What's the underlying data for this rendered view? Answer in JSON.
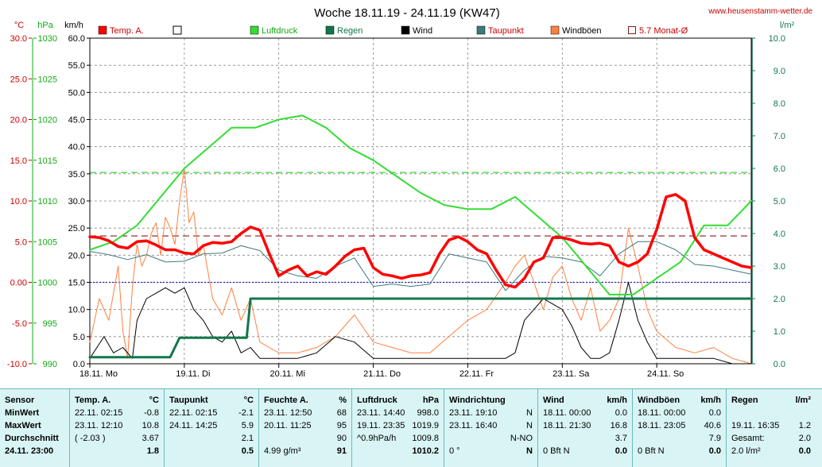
{
  "title": "Woche 18.11.19 - 24.11.19 (KW47)",
  "website": "www.heusenstamm-wetter.de",
  "colors": {
    "temp": "#ff0000",
    "pressure": "#33dd33",
    "rain": "#11774a",
    "wind": "#000000",
    "dewpoint": "#3d7a7a",
    "gust": "#ff8040",
    "monthavg": "#8b1a1a",
    "grid": "#888888",
    "frame": "#000000",
    "stats_bg": "#d9f4f4"
  },
  "axes_units": {
    "temp": "°C",
    "pressure": "hPa",
    "wind": "km/h",
    "rain": "l/m²"
  },
  "legend": [
    {
      "label": "Temp. A.",
      "color": "#ff0000",
      "style": "filled"
    },
    {
      "label": "",
      "color": "#ffffff",
      "style": "empty"
    },
    {
      "label": "Luftdruck",
      "color": "#33dd33",
      "style": "filled"
    },
    {
      "label": "Regen",
      "color": "#11774a",
      "style": "filled"
    },
    {
      "label": "Wind",
      "color": "#000000",
      "style": "filled"
    },
    {
      "label": "Taupunkt",
      "color": "#3d7a7a",
      "style": "filled"
    },
    {
      "label": "Windböen",
      "color": "#ff8040",
      "style": "filled"
    },
    {
      "label": "5.7 Monat-Ø",
      "color": "#8b1a1a",
      "style": "outline"
    }
  ],
  "chart_data": {
    "type": "line",
    "x_unit": "days",
    "x_range": [
      0,
      7
    ],
    "x_tick_labels": [
      "18.11. Mo",
      "19.11. Di",
      "20.11. Mi",
      "21.11. Do",
      "22.11. Fr",
      "23.11. Sa",
      "24.11. So"
    ],
    "axes": {
      "temp": {
        "range": [
          -10,
          30
        ],
        "ticks": [
          "30.0",
          "25.0",
          "20.0",
          "15.0",
          "10.0",
          "5.0",
          "0.00",
          "-5.0",
          "-10.0"
        ]
      },
      "pressure": {
        "range": [
          990,
          1030
        ],
        "ticks": [
          "1030",
          "1025",
          "1020",
          "1015",
          "1010",
          "1005",
          "1000",
          "995",
          "990"
        ]
      },
      "wind": {
        "range": [
          0,
          60
        ],
        "ticks": [
          "60.0",
          "55.0",
          "50.0",
          "45.0",
          "40.0",
          "35.0",
          "30.0",
          "25.0",
          "20.0",
          "15.0",
          "10.0",
          "5.0",
          "0.0"
        ]
      },
      "rain": {
        "range": [
          0,
          10
        ],
        "ticks": [
          "10.0",
          "9.0",
          "8.0",
          "7.0",
          "6.0",
          "5.0",
          "4.0",
          "3.0",
          "2.0",
          "1.0",
          "0.0"
        ]
      }
    },
    "reference_lines": [
      {
        "name": "Monat-Ø",
        "axis": "temp",
        "value": 5.7
      },
      {
        "axis": "pressure",
        "value": 1013.5
      },
      {
        "axis": "temp",
        "value": 0
      }
    ],
    "series": [
      {
        "name": "Temp. A.",
        "axis": "temp",
        "x": [
          0,
          0.1,
          0.2,
          0.3,
          0.4,
          0.5,
          0.6,
          0.7,
          0.8,
          0.9,
          1.0,
          1.1,
          1.2,
          1.3,
          1.4,
          1.5,
          1.6,
          1.7,
          1.8,
          1.9,
          2.0,
          2.1,
          2.2,
          2.3,
          2.4,
          2.5,
          2.6,
          2.7,
          2.8,
          2.9,
          3.0,
          3.1,
          3.2,
          3.3,
          3.4,
          3.5,
          3.6,
          3.7,
          3.8,
          3.9,
          4.0,
          4.1,
          4.2,
          4.3,
          4.4,
          4.5,
          4.6,
          4.7,
          4.8,
          4.9,
          5.0,
          5.1,
          5.2,
          5.3,
          5.4,
          5.5,
          5.6,
          5.7,
          5.8,
          5.9,
          6.0,
          6.1,
          6.2,
          6.3,
          6.4,
          6.5,
          6.6,
          6.7,
          6.8,
          6.9,
          7.0
        ],
        "y": [
          5.6,
          5.5,
          5.1,
          4.4,
          4.2,
          5.0,
          5.1,
          4.6,
          4.0,
          4.0,
          3.6,
          3.5,
          4.5,
          4.9,
          4.8,
          5.0,
          6.0,
          6.8,
          6.4,
          3.5,
          0.8,
          1.5,
          2.0,
          0.8,
          1.3,
          1.0,
          2.0,
          3.2,
          4.0,
          4.2,
          1.8,
          1.0,
          0.8,
          0.5,
          0.8,
          0.9,
          1.2,
          3.5,
          5.2,
          5.6,
          5.0,
          4.0,
          3.5,
          1.5,
          -0.3,
          -0.6,
          0.5,
          2.5,
          3.0,
          5.5,
          5.5,
          5.2,
          4.8,
          4.7,
          4.8,
          4.5,
          2.5,
          2.0,
          2.5,
          3.5,
          6.5,
          10.5,
          10.8,
          10.0,
          5.5,
          4.0,
          3.5,
          3.0,
          2.5,
          2.0,
          1.8
        ]
      },
      {
        "name": "Taupunkt",
        "axis": "temp",
        "x": [
          0,
          0.2,
          0.4,
          0.6,
          0.8,
          1.0,
          1.2,
          1.4,
          1.6,
          1.8,
          2.0,
          2.2,
          2.4,
          2.6,
          2.8,
          3.0,
          3.2,
          3.4,
          3.6,
          3.8,
          4.0,
          4.2,
          4.4,
          4.6,
          4.8,
          5.0,
          5.2,
          5.4,
          5.6,
          5.8,
          6.0,
          6.2,
          6.4,
          6.6,
          6.8,
          7.0
        ],
        "y": [
          3.8,
          3.4,
          2.8,
          3.4,
          2.5,
          2.6,
          3.5,
          3.6,
          4.5,
          3.9,
          1.5,
          0.8,
          0.5,
          2.0,
          3.0,
          -0.5,
          -0.2,
          -0.5,
          -0.2,
          3.5,
          3.0,
          2.5,
          -1.0,
          1.5,
          3.2,
          3.0,
          2.5,
          0.8,
          3.5,
          5.0,
          5.0,
          4.0,
          2.2,
          2.0,
          1.5,
          1.0
        ]
      },
      {
        "name": "Luftdruck",
        "axis": "pressure",
        "x": [
          0,
          0.25,
          0.5,
          0.75,
          1.0,
          1.25,
          1.5,
          1.75,
          2.0,
          2.25,
          2.5,
          2.75,
          3.0,
          3.25,
          3.5,
          3.75,
          4.0,
          4.25,
          4.5,
          4.75,
          5.0,
          5.25,
          5.5,
          5.75,
          6.0,
          6.25,
          6.5,
          6.75,
          7.0
        ],
        "y": [
          1004.0,
          1005.0,
          1007.0,
          1010.5,
          1014.0,
          1016.5,
          1019.0,
          1019.0,
          1020.0,
          1020.5,
          1019.0,
          1016.5,
          1015.0,
          1013.0,
          1011.0,
          1009.5,
          1009.0,
          1009.0,
          1010.5,
          1008.0,
          1005.5,
          1002.0,
          998.5,
          998.5,
          1000.5,
          1002.5,
          1007.0,
          1007.0,
          1010.0
        ]
      },
      {
        "name": "Regen",
        "axis": "rain",
        "x": [
          0,
          0.85,
          0.95,
          1.6,
          1.66,
          1.7,
          7.0
        ],
        "y": [
          0.2,
          0.2,
          0.8,
          0.8,
          0.8,
          2.0,
          2.0
        ]
      },
      {
        "name": "Wind",
        "axis": "wind",
        "x": [
          0,
          0.15,
          0.25,
          0.35,
          0.45,
          0.5,
          0.6,
          0.7,
          0.8,
          0.9,
          1.0,
          1.1,
          1.2,
          1.3,
          1.4,
          1.5,
          1.6,
          1.7,
          1.8,
          2.0,
          2.2,
          2.4,
          2.6,
          2.8,
          3.0,
          3.1,
          3.2,
          3.4,
          3.6,
          3.8,
          4.0,
          4.2,
          4.4,
          4.5,
          4.6,
          4.8,
          4.9,
          5.0,
          5.1,
          5.2,
          5.3,
          5.4,
          5.5,
          5.6,
          5.7,
          5.8,
          5.9,
          6.0,
          6.2,
          6.4,
          6.6,
          6.8,
          7.0
        ],
        "y": [
          1,
          5,
          2,
          3,
          1,
          8,
          12,
          13,
          14,
          13,
          14,
          10,
          8,
          5,
          4,
          6,
          2,
          3,
          1,
          1,
          1,
          2,
          5,
          4,
          1,
          1,
          1,
          1,
          1,
          1,
          1,
          1,
          1,
          2,
          8,
          12,
          11,
          10,
          7,
          3,
          1,
          1,
          2,
          8,
          15,
          8,
          4,
          1,
          1,
          1,
          1,
          0,
          0
        ]
      },
      {
        "name": "Windböen",
        "axis": "wind",
        "x": [
          0,
          0.1,
          0.2,
          0.3,
          0.35,
          0.4,
          0.45,
          0.5,
          0.55,
          0.6,
          0.65,
          0.7,
          0.75,
          0.8,
          0.85,
          0.9,
          0.95,
          1.0,
          1.05,
          1.1,
          1.15,
          1.2,
          1.3,
          1.4,
          1.5,
          1.6,
          1.7,
          1.8,
          1.9,
          2.0,
          2.2,
          2.4,
          2.6,
          2.8,
          3.0,
          3.2,
          3.4,
          3.6,
          3.8,
          4.0,
          4.2,
          4.4,
          4.5,
          4.6,
          4.7,
          4.8,
          4.9,
          5.0,
          5.1,
          5.2,
          5.3,
          5.4,
          5.5,
          5.6,
          5.7,
          5.8,
          5.9,
          6.0,
          6.2,
          6.4,
          6.6,
          6.8,
          7.0
        ],
        "y": [
          4,
          12,
          8,
          18,
          6,
          1,
          14,
          22,
          18,
          20,
          24,
          26,
          20,
          27,
          25,
          22,
          30,
          36,
          26,
          28,
          20,
          22,
          12,
          9,
          14,
          8,
          12,
          4,
          3,
          2,
          2,
          3,
          5,
          9,
          4,
          3,
          2,
          2,
          5,
          8,
          10,
          15,
          18,
          20,
          15,
          10,
          16,
          18,
          12,
          8,
          14,
          6,
          8,
          12,
          25,
          18,
          10,
          6,
          3,
          2,
          3,
          1,
          0
        ]
      }
    ]
  },
  "stats": {
    "sensor": {
      "header": "Sensor",
      "rows": [
        "MinWert",
        "MaxWert",
        "Durchschnitt",
        "24.11. 23:00"
      ]
    },
    "temp": {
      "header": "Temp. A.",
      "unit": "°C",
      "rows": [
        [
          "22.11.  02:15",
          "-0.8"
        ],
        [
          "23.11.  12:10",
          "10.8"
        ],
        [
          "( -2.03 )",
          "3.67"
        ],
        [
          "",
          "1.8"
        ]
      ]
    },
    "dewpoint": {
      "header": "Taupunkt",
      "unit": "°C",
      "rows": [
        [
          "22.11.  02:15",
          "-2.1"
        ],
        [
          "24.11.  14:25",
          "5.9"
        ],
        [
          "",
          "2.1"
        ],
        [
          "",
          "0.5"
        ]
      ]
    },
    "humidity": {
      "header": "Feuchte A.",
      "unit": "%",
      "rows": [
        [
          "23.11.  12:50",
          "68"
        ],
        [
          "20.11.  11:25",
          "95"
        ],
        [
          "",
          "90"
        ],
        [
          "4.99 g/m³",
          "91"
        ]
      ]
    },
    "pressure": {
      "header": "Luftdruck",
      "unit": "hPa",
      "rows": [
        [
          "23.11.  14:40",
          "998.0"
        ],
        [
          "19.11.  23:35",
          "1019.9"
        ],
        [
          "^0.9hPa/h",
          "1009.8"
        ],
        [
          "",
          "1010.2"
        ]
      ]
    },
    "winddir": {
      "header": "Windrichtung",
      "unit": "",
      "rows": [
        [
          "23.11.  19:10",
          "N"
        ],
        [
          "23.11.  16:40",
          "N"
        ],
        [
          "",
          "N-NO"
        ],
        [
          "0 °",
          "N"
        ]
      ]
    },
    "wind": {
      "header": "Wind",
      "unit": "km/h",
      "rows": [
        [
          "18.11.  00:00",
          "0.0"
        ],
        [
          "18.11.  21:30",
          "16.8"
        ],
        [
          "",
          "3.7"
        ],
        [
          "0 Bft N",
          "0.0"
        ]
      ]
    },
    "gust": {
      "header": "Windböen",
      "unit": "km/h",
      "rows": [
        [
          "18.11.  00:00",
          "0.0"
        ],
        [
          "18.11.  23:05",
          "40.6"
        ],
        [
          "",
          "7.9"
        ],
        [
          "0 Bft N",
          "0.0"
        ]
      ]
    },
    "rain": {
      "header": "Regen",
      "unit": "l/m²",
      "rows": [
        [
          "",
          ""
        ],
        [
          "19.11.  16:35",
          "1.2"
        ],
        [
          "Gesamt:",
          "2.0"
        ],
        [
          "2.0 l/m²",
          "0.0"
        ]
      ]
    }
  }
}
